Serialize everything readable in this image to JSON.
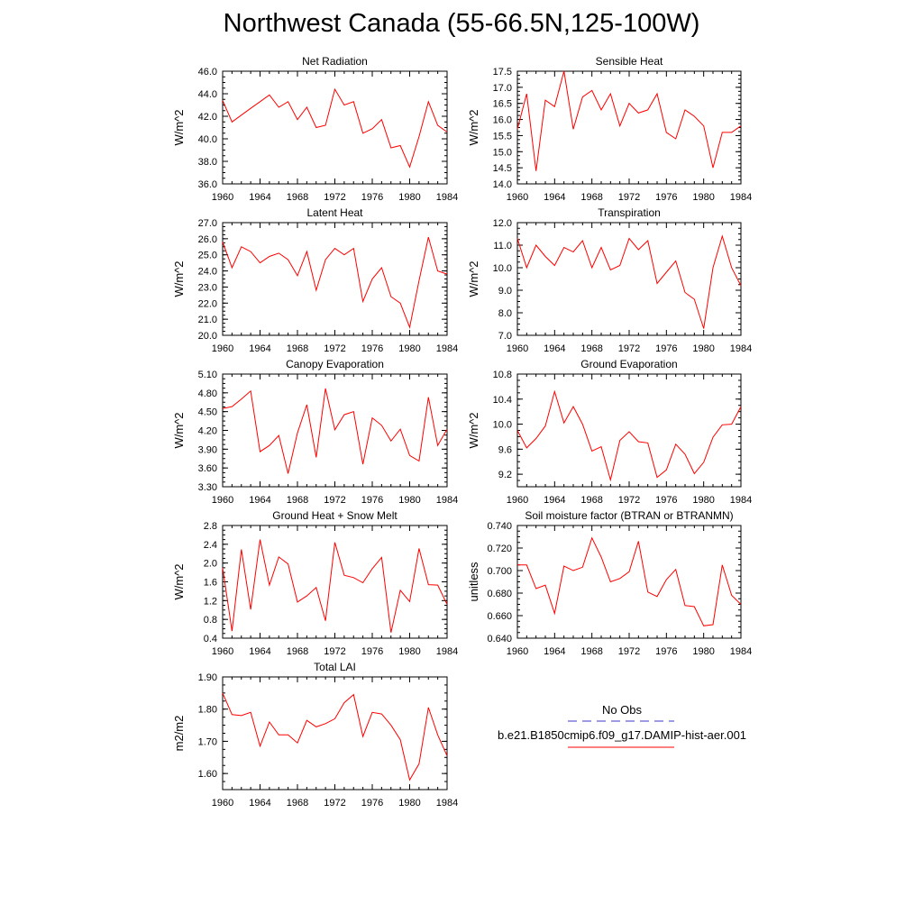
{
  "page_title": "Northwest Canada (55-66.5N,125-100W)",
  "colors": {
    "series": "#ff0000",
    "obs": "#3a3acc",
    "axis": "#000000"
  },
  "legend": {
    "obs_label": "No Obs",
    "model_label": "b.e21.B1850cmip6.f09_g17.DAMIP-hist-aer.001"
  },
  "chart_data": [
    {
      "type": "line",
      "title": "Net Radiation",
      "ylabel": "W/m^2",
      "xlim": [
        1960,
        1984
      ],
      "ylim": [
        36.0,
        46.0
      ],
      "xticks": [
        "1960",
        "1964",
        "1968",
        "1972",
        "1976",
        "1980",
        "1984"
      ],
      "yticks": [
        "36.0",
        "38.0",
        "40.0",
        "42.0",
        "44.0",
        "46.0"
      ],
      "x": [
        1960,
        1961,
        1962,
        1963,
        1964,
        1965,
        1966,
        1967,
        1968,
        1969,
        1970,
        1971,
        1972,
        1973,
        1974,
        1975,
        1976,
        1977,
        1978,
        1979,
        1980,
        1981,
        1982,
        1983,
        1984
      ],
      "values": [
        43.4,
        41.5,
        42.1,
        42.7,
        43.3,
        43.9,
        42.8,
        43.3,
        41.7,
        42.8,
        41.0,
        41.2,
        44.4,
        43.0,
        43.3,
        40.5,
        40.9,
        41.7,
        39.2,
        39.4,
        37.5,
        40.2,
        43.3,
        41.2,
        40.6
      ]
    },
    {
      "type": "line",
      "title": "Sensible Heat",
      "ylabel": "W/m^2",
      "xlim": [
        1960,
        1984
      ],
      "ylim": [
        14.0,
        17.5
      ],
      "xticks": [
        "1960",
        "1964",
        "1968",
        "1972",
        "1976",
        "1980",
        "1984"
      ],
      "yticks": [
        "14.0",
        "14.5",
        "15.0",
        "15.5",
        "16.0",
        "16.5",
        "17.0",
        "17.5"
      ],
      "x": [
        1960,
        1961,
        1962,
        1963,
        1964,
        1965,
        1966,
        1967,
        1968,
        1969,
        1970,
        1971,
        1972,
        1973,
        1974,
        1975,
        1976,
        1977,
        1978,
        1979,
        1980,
        1981,
        1982,
        1983,
        1984
      ],
      "values": [
        15.7,
        16.8,
        14.4,
        16.6,
        16.4,
        17.5,
        15.7,
        16.7,
        16.9,
        16.3,
        16.8,
        15.8,
        16.5,
        16.2,
        16.3,
        16.8,
        15.6,
        15.4,
        16.3,
        16.1,
        15.8,
        14.5,
        15.6,
        15.6,
        15.8
      ]
    },
    {
      "type": "line",
      "title": "Latent Heat",
      "ylabel": "W/m^2",
      "xlim": [
        1960,
        1984
      ],
      "ylim": [
        20.0,
        27.0
      ],
      "xticks": [
        "1960",
        "1964",
        "1968",
        "1972",
        "1976",
        "1980",
        "1984"
      ],
      "yticks": [
        "20.0",
        "21.0",
        "22.0",
        "23.0",
        "24.0",
        "25.0",
        "26.0",
        "27.0"
      ],
      "x": [
        1960,
        1961,
        1962,
        1963,
        1964,
        1965,
        1966,
        1967,
        1968,
        1969,
        1970,
        1971,
        1972,
        1973,
        1974,
        1975,
        1976,
        1977,
        1978,
        1979,
        1980,
        1981,
        1982,
        1983,
        1984
      ],
      "values": [
        25.8,
        24.2,
        25.5,
        25.2,
        24.5,
        24.9,
        25.1,
        24.7,
        23.7,
        25.2,
        22.8,
        24.7,
        25.4,
        25.0,
        25.4,
        22.1,
        23.5,
        24.2,
        22.4,
        22.0,
        20.5,
        23.4,
        26.1,
        24.0,
        23.8
      ]
    },
    {
      "type": "line",
      "title": "Transpiration",
      "ylabel": "W/m^2",
      "xlim": [
        1960,
        1984
      ],
      "ylim": [
        7.0,
        12.0
      ],
      "xticks": [
        "1960",
        "1964",
        "1968",
        "1972",
        "1976",
        "1980",
        "1984"
      ],
      "yticks": [
        "7.0",
        "8.0",
        "9.0",
        "10.0",
        "11.0",
        "12.0"
      ],
      "x": [
        1960,
        1961,
        1962,
        1963,
        1964,
        1965,
        1966,
        1967,
        1968,
        1969,
        1970,
        1971,
        1972,
        1973,
        1974,
        1975,
        1976,
        1977,
        1978,
        1979,
        1980,
        1981,
        1982,
        1983,
        1984
      ],
      "values": [
        11.3,
        10.0,
        11.0,
        10.5,
        10.1,
        10.9,
        10.7,
        11.2,
        10.0,
        10.9,
        9.9,
        10.1,
        11.3,
        10.8,
        11.2,
        9.3,
        9.8,
        10.3,
        8.9,
        8.6,
        7.3,
        10.0,
        11.4,
        10.0,
        9.2
      ]
    },
    {
      "type": "line",
      "title": "Canopy Evaporation",
      "ylabel": "W/m^2",
      "xlim": [
        1960,
        1984
      ],
      "ylim": [
        3.3,
        5.1
      ],
      "xticks": [
        "1960",
        "1964",
        "1968",
        "1972",
        "1976",
        "1980",
        "1984"
      ],
      "yticks": [
        "3.30",
        "3.60",
        "3.90",
        "4.20",
        "4.50",
        "4.80",
        "5.10"
      ],
      "x": [
        1960,
        1961,
        1962,
        1963,
        1964,
        1965,
        1966,
        1967,
        1968,
        1969,
        1970,
        1971,
        1972,
        1973,
        1974,
        1975,
        1976,
        1977,
        1978,
        1979,
        1980,
        1981,
        1982,
        1983,
        1984
      ],
      "values": [
        4.55,
        4.58,
        4.7,
        4.83,
        3.86,
        3.96,
        4.12,
        3.51,
        4.16,
        4.61,
        3.77,
        4.87,
        4.21,
        4.45,
        4.5,
        3.66,
        4.4,
        4.28,
        4.03,
        4.22,
        3.8,
        3.71,
        4.73,
        3.96,
        4.22
      ]
    },
    {
      "type": "line",
      "title": "Ground Evaporation",
      "ylabel": "W/m^2",
      "xlim": [
        1960,
        1984
      ],
      "ylim": [
        9.0,
        10.8
      ],
      "xticks": [
        "1960",
        "1964",
        "1968",
        "1972",
        "1976",
        "1980",
        "1984"
      ],
      "yticks": [
        "9.2",
        "9.6",
        "10.0",
        "10.4",
        "10.8"
      ],
      "x": [
        1960,
        1961,
        1962,
        1963,
        1964,
        1965,
        1966,
        1967,
        1968,
        1969,
        1970,
        1971,
        1972,
        1973,
        1974,
        1975,
        1976,
        1977,
        1978,
        1979,
        1980,
        1981,
        1982,
        1983,
        1984
      ],
      "values": [
        9.9,
        9.62,
        9.77,
        9.97,
        10.52,
        10.02,
        10.28,
        10.0,
        9.57,
        9.64,
        9.11,
        9.74,
        9.88,
        9.72,
        9.7,
        9.15,
        9.27,
        9.68,
        9.52,
        9.21,
        9.39,
        9.79,
        9.99,
        10.0,
        10.28
      ]
    },
    {
      "type": "line",
      "title": "Ground Heat + Snow Melt",
      "ylabel": "W/m^2",
      "xlim": [
        1960,
        1984
      ],
      "ylim": [
        0.4,
        2.8
      ],
      "xticks": [
        "1960",
        "1964",
        "1968",
        "1972",
        "1976",
        "1980",
        "1984"
      ],
      "yticks": [
        "0.4",
        "0.8",
        "1.2",
        "1.6",
        "2.0",
        "2.4",
        "2.8"
      ],
      "x": [
        1960,
        1961,
        1962,
        1963,
        1964,
        1965,
        1966,
        1967,
        1968,
        1969,
        1970,
        1971,
        1972,
        1973,
        1974,
        1975,
        1976,
        1977,
        1978,
        1979,
        1980,
        1981,
        1982,
        1983,
        1984
      ],
      "values": [
        1.9,
        0.55,
        2.29,
        1.01,
        2.5,
        1.53,
        2.13,
        1.98,
        1.17,
        1.3,
        1.48,
        0.77,
        2.44,
        1.74,
        1.69,
        1.58,
        1.88,
        2.12,
        0.52,
        1.42,
        1.18,
        2.31,
        1.54,
        1.53,
        1.12
      ]
    },
    {
      "type": "line",
      "title": "Soil moisture factor (BTRAN or BTRANMN)",
      "ylabel": "unitless",
      "xlim": [
        1960,
        1984
      ],
      "ylim": [
        0.64,
        0.74
      ],
      "xticks": [
        "1960",
        "1964",
        "1968",
        "1972",
        "1976",
        "1980",
        "1984"
      ],
      "yticks": [
        "0.640",
        "0.660",
        "0.680",
        "0.700",
        "0.720",
        "0.740"
      ],
      "x": [
        1960,
        1961,
        1962,
        1963,
        1964,
        1965,
        1966,
        1967,
        1968,
        1969,
        1970,
        1971,
        1972,
        1973,
        1974,
        1975,
        1976,
        1977,
        1978,
        1979,
        1980,
        1981,
        1982,
        1983,
        1984
      ],
      "values": [
        0.705,
        0.705,
        0.684,
        0.687,
        0.662,
        0.704,
        0.7,
        0.703,
        0.729,
        0.712,
        0.69,
        0.693,
        0.699,
        0.726,
        0.681,
        0.677,
        0.692,
        0.701,
        0.669,
        0.668,
        0.651,
        0.652,
        0.705,
        0.678,
        0.67
      ]
    },
    {
      "type": "line",
      "title": "Total LAI",
      "ylabel": "m2/m2",
      "xlim": [
        1960,
        1984
      ],
      "ylim": [
        1.55,
        1.9
      ],
      "xticks": [
        "1960",
        "1964",
        "1968",
        "1972",
        "1976",
        "1980",
        "1984"
      ],
      "yticks": [
        "1.60",
        "1.70",
        "1.80",
        "1.90"
      ],
      "x": [
        1960,
        1961,
        1962,
        1963,
        1964,
        1965,
        1966,
        1967,
        1968,
        1969,
        1970,
        1971,
        1972,
        1973,
        1974,
        1975,
        1976,
        1977,
        1978,
        1979,
        1980,
        1981,
        1982,
        1983,
        1984
      ],
      "values": [
        1.85,
        1.783,
        1.78,
        1.79,
        1.685,
        1.76,
        1.72,
        1.72,
        1.695,
        1.765,
        1.745,
        1.755,
        1.77,
        1.82,
        1.845,
        1.715,
        1.79,
        1.785,
        1.75,
        1.705,
        1.58,
        1.63,
        1.805,
        1.72,
        1.655
      ]
    }
  ]
}
